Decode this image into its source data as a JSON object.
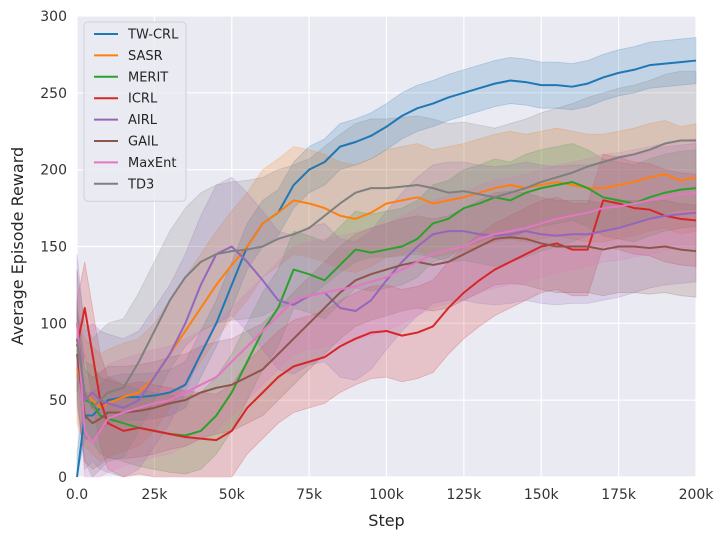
{
  "chart_data": {
    "type": "line",
    "title": "",
    "xlabel": "Step",
    "ylabel": "Average Episode Reward",
    "xlim": [
      0,
      200000
    ],
    "ylim": [
      0,
      300
    ],
    "x_ticks": [
      0,
      25000,
      50000,
      75000,
      100000,
      125000,
      150000,
      175000,
      200000
    ],
    "x_tick_labels": [
      "0.0",
      "25k",
      "50k",
      "75k",
      "100k",
      "125k",
      "150k",
      "175k",
      "200k"
    ],
    "y_ticks": [
      0,
      50,
      100,
      150,
      200,
      250,
      300
    ],
    "y_tick_labels": [
      "0",
      "50",
      "100",
      "150",
      "200",
      "250",
      "300"
    ],
    "grid": true,
    "legend_position": "top-left",
    "x": [
      0,
      2500,
      5000,
      7500,
      10000,
      15000,
      20000,
      25000,
      30000,
      35000,
      40000,
      45000,
      50000,
      55000,
      60000,
      65000,
      70000,
      75000,
      80000,
      85000,
      90000,
      95000,
      100000,
      105000,
      110000,
      115000,
      120000,
      125000,
      130000,
      135000,
      140000,
      145000,
      150000,
      155000,
      160000,
      165000,
      170000,
      175000,
      180000,
      185000,
      190000,
      195000,
      200000
    ],
    "series": [
      {
        "name": "TW-CRL",
        "color": "#1f77b4",
        "band": 15,
        "values": [
          0,
          40,
          40,
          45,
          50,
          52,
          52,
          53,
          55,
          60,
          80,
          100,
          125,
          150,
          165,
          172,
          190,
          200,
          205,
          215,
          218,
          222,
          228,
          235,
          240,
          243,
          247,
          250,
          253,
          256,
          258,
          257,
          255,
          255,
          254,
          256,
          260,
          263,
          265,
          268,
          269,
          270,
          271
        ]
      },
      {
        "name": "SASR",
        "color": "#ff7f0e",
        "band": 35,
        "values": [
          70,
          55,
          50,
          45,
          48,
          52,
          55,
          65,
          80,
          95,
          110,
          125,
          138,
          150,
          165,
          172,
          180,
          178,
          175,
          170,
          168,
          172,
          178,
          180,
          182,
          178,
          180,
          182,
          185,
          188,
          190,
          188,
          190,
          192,
          190,
          188,
          188,
          190,
          192,
          195,
          197,
          193,
          195
        ]
      },
      {
        "name": "MERIT",
        "color": "#2ca02c",
        "band": 25,
        "values": [
          90,
          50,
          48,
          40,
          38,
          35,
          32,
          30,
          28,
          27,
          30,
          40,
          55,
          75,
          95,
          110,
          135,
          132,
          128,
          138,
          148,
          146,
          148,
          150,
          155,
          165,
          168,
          175,
          178,
          182,
          180,
          185,
          188,
          190,
          192,
          188,
          182,
          180,
          178,
          182,
          185,
          187,
          188
        ]
      },
      {
        "name": "ICRL",
        "color": "#d62728",
        "band": 30,
        "values": [
          85,
          110,
          80,
          50,
          35,
          30,
          32,
          30,
          28,
          26,
          25,
          24,
          30,
          45,
          55,
          65,
          72,
          75,
          78,
          85,
          90,
          94,
          95,
          92,
          94,
          98,
          110,
          120,
          128,
          135,
          140,
          145,
          150,
          152,
          148,
          148,
          180,
          178,
          175,
          174,
          170,
          168,
          167
        ]
      },
      {
        "name": "AIRL",
        "color": "#9467bd",
        "band": 45,
        "values": [
          100,
          50,
          55,
          50,
          48,
          45,
          50,
          65,
          80,
          100,
          125,
          145,
          150,
          140,
          128,
          115,
          112,
          118,
          120,
          110,
          108,
          115,
          128,
          140,
          150,
          158,
          160,
          160,
          158,
          157,
          158,
          160,
          158,
          157,
          158,
          158,
          160,
          162,
          165,
          168,
          170,
          171,
          172
        ]
      },
      {
        "name": "GAIL",
        "color": "#8c564b",
        "band": 30,
        "values": [
          80,
          40,
          35,
          38,
          42,
          42,
          43,
          45,
          48,
          50,
          55,
          58,
          60,
          65,
          70,
          80,
          90,
          100,
          110,
          120,
          128,
          132,
          135,
          138,
          140,
          138,
          140,
          145,
          150,
          155,
          156,
          155,
          152,
          150,
          150,
          150,
          148,
          150,
          150,
          149,
          150,
          148,
          147
        ]
      },
      {
        "name": "MaxEnt",
        "color": "#e377c2",
        "band": 35,
        "values": [
          100,
          30,
          22,
          30,
          38,
          42,
          45,
          48,
          50,
          55,
          60,
          65,
          75,
          85,
          95,
          105,
          115,
          118,
          120,
          122,
          124,
          127,
          130,
          135,
          140,
          145,
          148,
          150,
          155,
          158,
          160,
          162,
          165,
          168,
          170,
          172,
          175,
          176,
          178,
          180,
          182,
          184,
          185
        ]
      },
      {
        "name": "TD3",
        "color": "#7f7f7f",
        "band": 45,
        "values": [
          90,
          55,
          45,
          50,
          55,
          58,
          75,
          95,
          115,
          130,
          140,
          145,
          147,
          148,
          150,
          155,
          158,
          162,
          170,
          178,
          185,
          188,
          188,
          189,
          190,
          188,
          185,
          186,
          184,
          182,
          185,
          188,
          192,
          195,
          198,
          202,
          205,
          208,
          210,
          213,
          217,
          219,
          219
        ]
      }
    ]
  }
}
